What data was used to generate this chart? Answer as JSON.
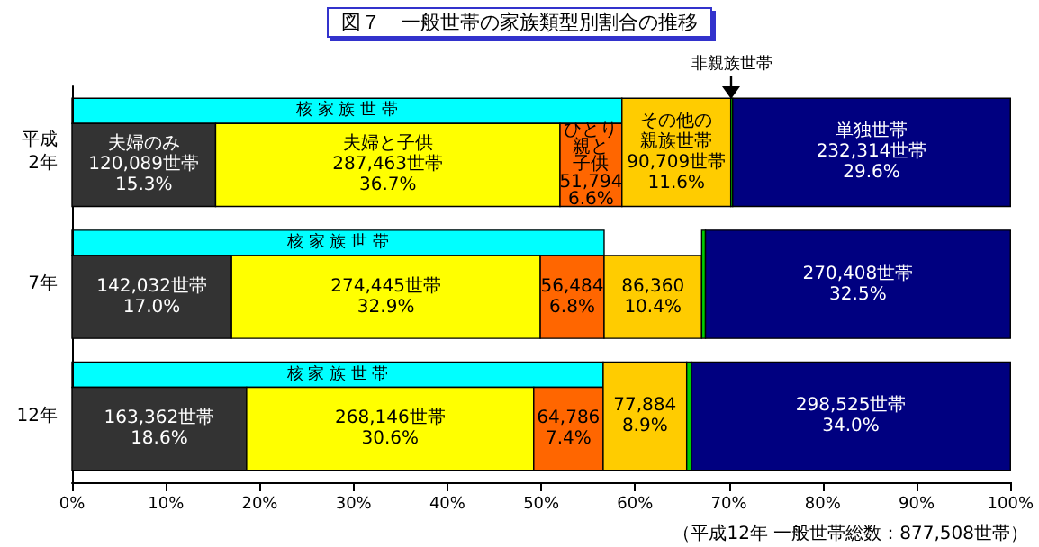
{
  "chart_data": {
    "type": "bar",
    "orientation": "horizontal",
    "stacked": true,
    "title": "図７　一般世帯の家族類型別割合の推移",
    "categories": [
      "平成\n2年",
      "7年",
      "12年"
    ],
    "series": [
      {
        "name": "夫婦のみ",
        "color": "#333333",
        "values": [
          15.3,
          17.0,
          18.6
        ],
        "value_labels": [
          "120,089世帯\n15.3%",
          "142,032世帯\n17.0%",
          "163,362世帯\n18.6%"
        ]
      },
      {
        "name": "夫婦と子供",
        "color": "#ffff00",
        "values": [
          36.7,
          32.9,
          30.6
        ],
        "value_labels": [
          "287,463世帯\n36.7%",
          "274,445世帯\n32.9%",
          "268,146世帯\n30.6%"
        ]
      },
      {
        "name": "ひとり親と子供",
        "color": "#ff6600",
        "values": [
          6.6,
          6.8,
          7.4
        ],
        "value_labels": [
          "51,794\n6.6%",
          "56,484\n6.8%",
          "64,786\n7.4%"
        ]
      },
      {
        "name": "その他の親族世帯",
        "color": "#ffcc00",
        "values": [
          11.6,
          10.4,
          8.9
        ],
        "value_labels": [
          "90,709世帯\n11.6%",
          "86,360\n10.4%",
          "77,884\n8.9%"
        ]
      },
      {
        "name": "非親族世帯",
        "color": "#00cc00",
        "values": [
          0.2,
          0.4,
          0.5
        ]
      },
      {
        "name": "単独世帯",
        "color": "#000080",
        "values": [
          29.6,
          32.5,
          34.0
        ],
        "value_labels": [
          "232,314世帯\n29.6%",
          "270,408世帯\n32.5%",
          "298,525世帯\n34.0%"
        ]
      }
    ],
    "bands": [
      {
        "axis": "x",
        "from": 0,
        "to": 58.6,
        "label": "核 家 族 世 帯",
        "color": "#00ffff"
      },
      {
        "axis": "x",
        "from": 0,
        "to": 56.7,
        "label": "核 家 族 世 帯",
        "color": "#00ffff"
      },
      {
        "axis": "x",
        "from": 0,
        "to": 56.6,
        "label": "核 家 族 世 帯",
        "color": "#00ffff"
      }
    ],
    "annotations": [
      "（平成12年 一般世帯総数：877,508世帯）"
    ],
    "xlim": [
      0,
      100
    ],
    "xticks": [
      {
        "value": 0,
        "label": "0%"
      },
      {
        "value": 10,
        "label": "10%"
      },
      {
        "value": 20,
        "label": "20%"
      },
      {
        "value": 30,
        "label": "30%"
      },
      {
        "value": 40,
        "label": "40%"
      },
      {
        "value": 50,
        "label": "50%"
      },
      {
        "value": 60,
        "label": "60%"
      },
      {
        "value": 70,
        "label": "70%"
      },
      {
        "value": 80,
        "label": "80%"
      },
      {
        "value": 90,
        "label": "90%"
      },
      {
        "value": 100,
        "label": "100%"
      }
    ],
    "grid": false,
    "legend": false
  }
}
